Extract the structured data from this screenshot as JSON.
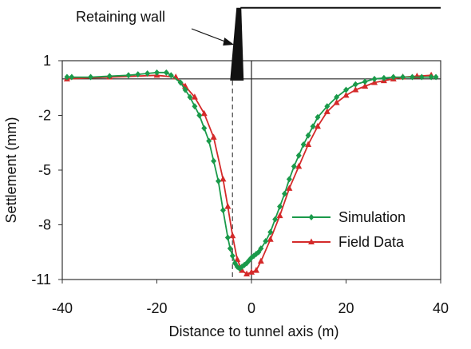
{
  "chart_data": {
    "type": "line",
    "title": "",
    "xlabel": "Distance to tunnel axis (m)",
    "ylabel": "Settlement (mm)",
    "xlim": [
      -40,
      40
    ],
    "ylim": [
      -11,
      1
    ],
    "xticks": [
      -40,
      -20,
      0,
      20,
      40
    ],
    "yticks": [
      1,
      -2,
      -5,
      -8,
      -11
    ],
    "xtick_labels": [
      "-40",
      "-20",
      "0",
      "20",
      "40"
    ],
    "ytick_labels": [
      "1",
      "-2",
      "-5",
      "-8",
      "-11"
    ],
    "grid": false,
    "legend_position": "bottom-right",
    "annotation": {
      "text": "Retaining wall",
      "wall_x": -3,
      "ground_line_y": 3.9
    },
    "series": [
      {
        "name": "Simulation",
        "color": "#1a9a4a",
        "marker": "diamond",
        "x": [
          -39,
          -38,
          -34,
          -30,
          -26,
          -24,
          -22,
          -20,
          -18,
          -17,
          -15,
          -14,
          -13,
          -12,
          -11,
          -10,
          -9,
          -8,
          -7,
          -6,
          -5,
          -4.5,
          -4,
          -3.5,
          -3,
          -2.5,
          -2,
          -1.5,
          -1,
          -0.5,
          0,
          0.5,
          1,
          1.5,
          2,
          3,
          4,
          5,
          6,
          7,
          8,
          9,
          10,
          11,
          12,
          13,
          14,
          16,
          18,
          20,
          22,
          24,
          26,
          28,
          30,
          32,
          34,
          36,
          38,
          39
        ],
        "y": [
          0.1,
          0.1,
          0.1,
          0.15,
          0.2,
          0.25,
          0.3,
          0.35,
          0.35,
          0.2,
          -0.2,
          -0.6,
          -1.0,
          -1.5,
          -2.0,
          -2.7,
          -3.4,
          -4.5,
          -5.6,
          -7.2,
          -8.7,
          -9.3,
          -9.7,
          -10.1,
          -10.3,
          -10.4,
          -10.3,
          -10.2,
          -10.1,
          -9.95,
          -9.8,
          -9.7,
          -9.6,
          -9.5,
          -9.3,
          -8.9,
          -8.4,
          -7.7,
          -7.0,
          -6.3,
          -5.5,
          -4.8,
          -4.2,
          -3.6,
          -3.1,
          -2.6,
          -2.1,
          -1.5,
          -1.0,
          -0.6,
          -0.3,
          -0.15,
          0.0,
          0.05,
          0.1,
          0.1,
          0.1,
          0.1,
          0.1,
          0.1
        ]
      },
      {
        "name": "Field Data",
        "color": "#d42a2a",
        "marker": "triangle",
        "x": [
          -39,
          -30,
          -20,
          -16,
          -14,
          -12,
          -10,
          -8,
          -6,
          -5,
          -4,
          -3,
          -2,
          -1,
          0,
          1,
          2,
          4,
          6,
          8,
          10,
          12,
          14,
          16,
          18,
          20,
          22,
          24,
          26,
          28,
          30,
          32,
          35,
          38
        ],
        "y": [
          0.0,
          0.1,
          0.2,
          0.1,
          -0.4,
          -1.0,
          -1.9,
          -3.2,
          -5.5,
          -7.0,
          -8.6,
          -9.9,
          -10.5,
          -10.7,
          -10.6,
          -10.5,
          -10.0,
          -8.8,
          -7.5,
          -6.0,
          -4.8,
          -3.6,
          -2.6,
          -1.8,
          -1.3,
          -0.9,
          -0.6,
          -0.4,
          -0.2,
          -0.1,
          0.0,
          0.1,
          0.15,
          0.2
        ]
      }
    ]
  }
}
